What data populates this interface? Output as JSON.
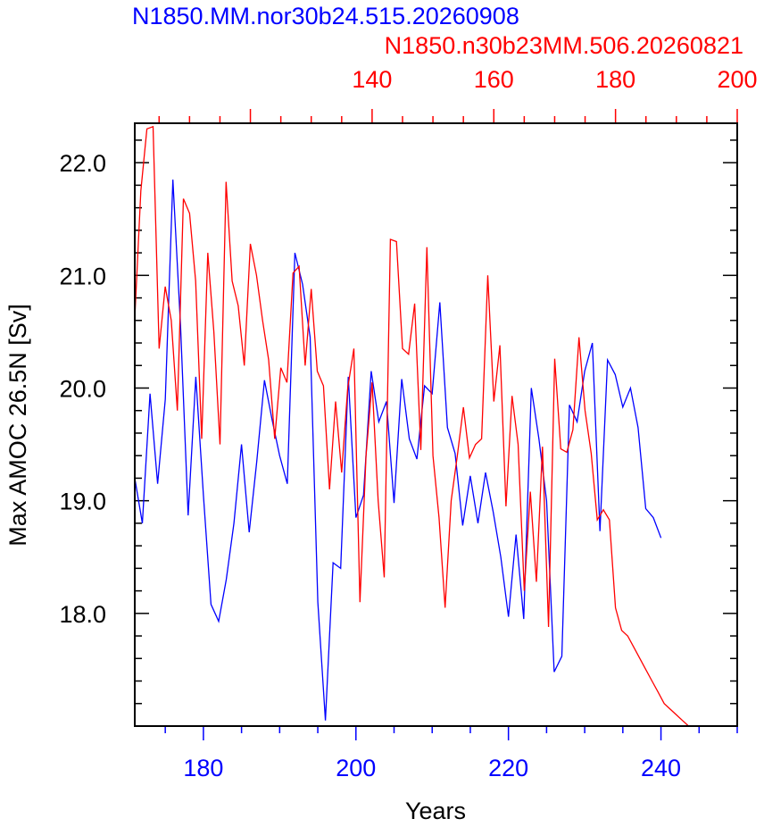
{
  "chart_data": {
    "type": "line",
    "ylabel": "Max AMOC 26.5N [Sv]",
    "xlabel": "Years",
    "ylim": [
      17.0,
      22.35
    ],
    "y_ticks": [
      "18.0",
      "19.0",
      "20.0",
      "21.0",
      "22.0"
    ],
    "grid": false,
    "legend": "none",
    "series": [
      {
        "name": "N1850.MM.nor30b24.515.20260908",
        "color": "#0000ff",
        "axis": "bottom",
        "xlim": [
          171,
          250
        ],
        "x_ticks": [
          "180",
          "200",
          "220",
          "240"
        ],
        "x": [
          171,
          172,
          173,
          174,
          175,
          176,
          177,
          178,
          179,
          180,
          181,
          182,
          183,
          184,
          185,
          186,
          187,
          188,
          189,
          190,
          191,
          192,
          193,
          194,
          195,
          196,
          197,
          198,
          199,
          200,
          201,
          202,
          203,
          204,
          205,
          206,
          207,
          208,
          209,
          210,
          211,
          212,
          213,
          214,
          215,
          216,
          217,
          218,
          219,
          220,
          221,
          222,
          223,
          224,
          225,
          226,
          227,
          228,
          229,
          230,
          231,
          232,
          233,
          234,
          235,
          236,
          237,
          238,
          239,
          240
        ],
        "values": [
          19.2,
          18.8,
          19.95,
          19.15,
          19.9,
          21.85,
          20.55,
          18.87,
          20.1,
          19.05,
          18.08,
          17.93,
          18.3,
          18.8,
          19.5,
          18.72,
          19.35,
          20.07,
          19.72,
          19.4,
          19.15,
          21.2,
          20.92,
          20.45,
          18.1,
          17.05,
          18.45,
          18.4,
          20.1,
          18.85,
          19.05,
          20.15,
          19.7,
          19.88,
          18.98,
          20.08,
          19.55,
          19.37,
          20.02,
          19.95,
          20.76,
          19.65,
          19.42,
          18.78,
          19.22,
          18.8,
          19.25,
          18.9,
          18.5,
          17.97,
          18.7,
          17.95,
          20.0,
          19.55,
          19.0,
          17.48,
          17.62,
          19.85,
          19.7,
          20.15,
          20.4,
          18.73,
          20.25,
          20.12,
          19.83,
          20.0,
          19.65,
          18.93,
          18.85,
          18.67
        ]
      },
      {
        "name": "N1850.n30b23MM.506.20260821",
        "color": "#ff0000",
        "axis": "top",
        "xlim": [
          101,
          200
        ],
        "x_ticks": [
          "140",
          "160",
          "180",
          "200"
        ],
        "x": [
          101,
          102,
          103,
          104,
          105,
          106,
          107,
          108,
          109,
          110,
          111,
          112,
          113,
          114,
          115,
          116,
          117,
          118,
          119,
          120,
          121,
          122,
          123,
          124,
          125,
          126,
          127,
          128,
          129,
          130,
          131,
          132,
          133,
          134,
          135,
          136,
          137,
          138,
          139,
          140,
          141,
          142,
          143,
          144,
          145,
          146,
          147,
          148,
          149,
          150,
          151,
          152,
          153,
          154,
          155,
          156,
          157,
          158,
          159,
          160,
          161,
          162,
          163,
          164,
          165,
          166,
          167,
          168,
          169,
          170,
          171,
          172,
          173,
          174,
          175,
          176,
          177,
          178,
          179,
          180,
          181,
          182,
          183,
          184,
          185,
          186,
          187,
          188,
          189,
          190,
          191,
          192,
          193,
          194,
          195,
          196,
          197,
          198,
          199,
          200
        ],
        "values": [
          20.62,
          21.75,
          22.3,
          22.32,
          20.35,
          20.9,
          20.6,
          19.8,
          21.68,
          21.55,
          20.95,
          19.55,
          21.2,
          20.5,
          19.5,
          21.83,
          20.95,
          20.73,
          20.2,
          21.28,
          21.0,
          20.6,
          20.25,
          19.55,
          20.18,
          20.05,
          21.02,
          21.08,
          20.2,
          20.88,
          20.15,
          20.02,
          19.1,
          19.88,
          19.25,
          20.0,
          20.35,
          18.1,
          19.4,
          20.05,
          19.0,
          18.32,
          21.32,
          21.3,
          20.35,
          20.3,
          20.75,
          19.45,
          21.25,
          19.4,
          18.85,
          18.05,
          19.0,
          19.4,
          19.83,
          19.38,
          19.5,
          19.55,
          21.0,
          19.88,
          20.38,
          18.95,
          19.93,
          19.5,
          18.2,
          19.08,
          18.28,
          19.48,
          17.88,
          20.26,
          19.46,
          19.43,
          19.63,
          20.45,
          19.8,
          19.42,
          18.83,
          18.92,
          18.83,
          18.05,
          17.85,
          17.8,
          17.7,
          17.6,
          17.5,
          17.4,
          17.3,
          17.2,
          17.15,
          17.1,
          17.05,
          17.0,
          17.0,
          17.0,
          17.0,
          17.0,
          17.0,
          17.0,
          17.0,
          17.0
        ]
      }
    ]
  }
}
